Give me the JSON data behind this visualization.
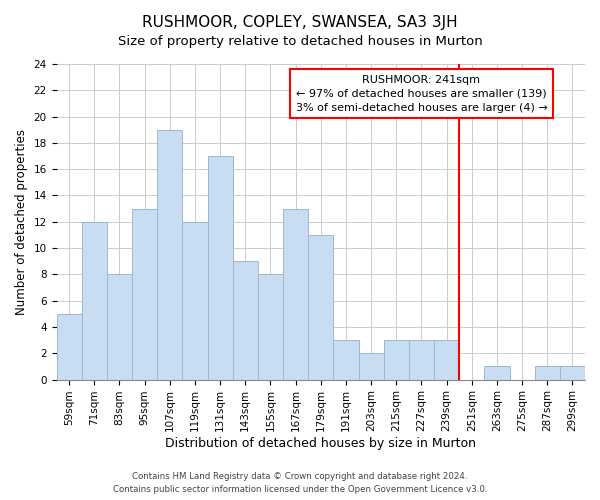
{
  "title": "RUSHMOOR, COPLEY, SWANSEA, SA3 3JH",
  "subtitle": "Size of property relative to detached houses in Murton",
  "xlabel": "Distribution of detached houses by size in Murton",
  "ylabel": "Number of detached properties",
  "footer_line1": "Contains HM Land Registry data © Crown copyright and database right 2024.",
  "footer_line2": "Contains public sector information licensed under the Open Government Licence v3.0.",
  "bar_labels": [
    "59sqm",
    "71sqm",
    "83sqm",
    "95sqm",
    "107sqm",
    "119sqm",
    "131sqm",
    "143sqm",
    "155sqm",
    "167sqm",
    "179sqm",
    "191sqm",
    "203sqm",
    "215sqm",
    "227sqm",
    "239sqm",
    "251sqm",
    "263sqm",
    "275sqm",
    "287sqm",
    "299sqm"
  ],
  "bar_values": [
    5,
    12,
    8,
    13,
    19,
    12,
    17,
    9,
    8,
    13,
    11,
    3,
    2,
    3,
    3,
    3,
    0,
    1,
    0,
    1,
    1
  ],
  "bar_color": "#c8dcf2",
  "bar_edge_color": "#9ab8d8",
  "grid_color": "#cccccc",
  "vline_index": 15.5,
  "vline_color": "red",
  "annotation_title": "RUSHMOOR: 241sqm",
  "annotation_line1": "← 97% of detached houses are smaller (139)",
  "annotation_line2": "3% of semi-detached houses are larger (4) →",
  "annotation_box_color": "white",
  "annotation_box_edge_color": "red",
  "ylim": [
    0,
    24
  ],
  "yticks": [
    0,
    2,
    4,
    6,
    8,
    10,
    12,
    14,
    16,
    18,
    20,
    22,
    24
  ],
  "title_fontsize": 11,
  "subtitle_fontsize": 9.5,
  "xlabel_fontsize": 9,
  "ylabel_fontsize": 8.5,
  "tick_fontsize": 7.5,
  "annotation_fontsize": 8
}
